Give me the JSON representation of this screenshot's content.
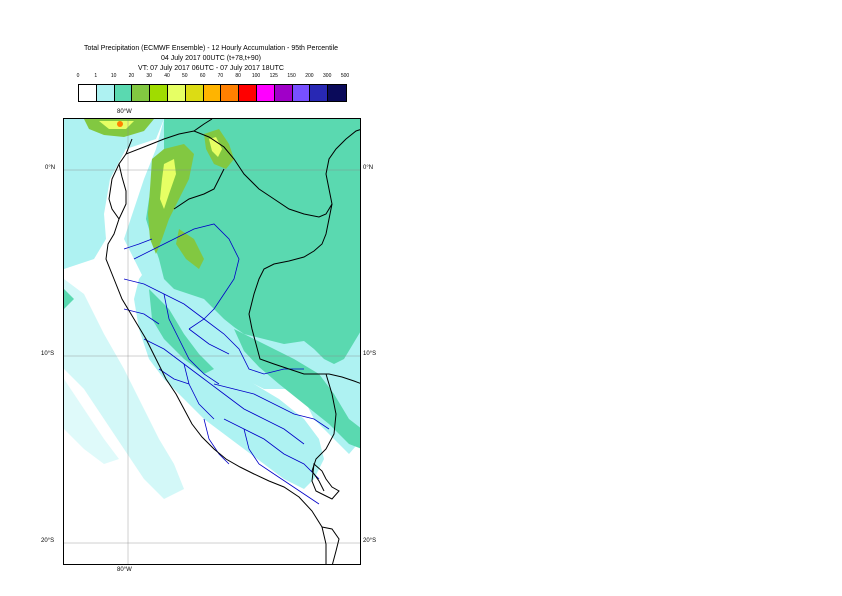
{
  "title": {
    "line1": "Total Precipitation (ECMWF Ensemble) - 12 Hourly Accumulation - 95th Percentile",
    "line2": "04 July 2017 00UTC (t+78,t+90)",
    "line3": "VT: 07 July 2017 06UTC - 07 July 2017 18UTC"
  },
  "legend": {
    "labels": [
      "0",
      "1",
      "10",
      "20",
      "30",
      "40",
      "50",
      "60",
      "70",
      "80",
      "100",
      "125",
      "150",
      "200",
      "300",
      "500"
    ],
    "colors": [
      "#ffffff",
      "#aef2f2",
      "#5ad9b0",
      "#82c841",
      "#a0dc00",
      "#e6ff64",
      "#dcdc14",
      "#ffb400",
      "#ff8000",
      "#ff0000",
      "#ff00ff",
      "#a000c8",
      "#7850ff",
      "#2828b4",
      "#0a0a5a"
    ]
  },
  "map": {
    "lon_labels": {
      "top": "80°W",
      "bottom": "80°W"
    },
    "lat_labels": [
      {
        "left": "0°N",
        "right": "0°N"
      },
      {
        "left": "10°S",
        "right": "10°S"
      },
      {
        "left": "20°S",
        "right": "20°S"
      }
    ],
    "colors": {
      "light": "#aef2f2",
      "medium": "#5ad9b0",
      "green": "#82c841",
      "yellow": "#e6ff64",
      "orange": "#ff8000",
      "border": "#000000",
      "regions": "#0000c8"
    }
  }
}
